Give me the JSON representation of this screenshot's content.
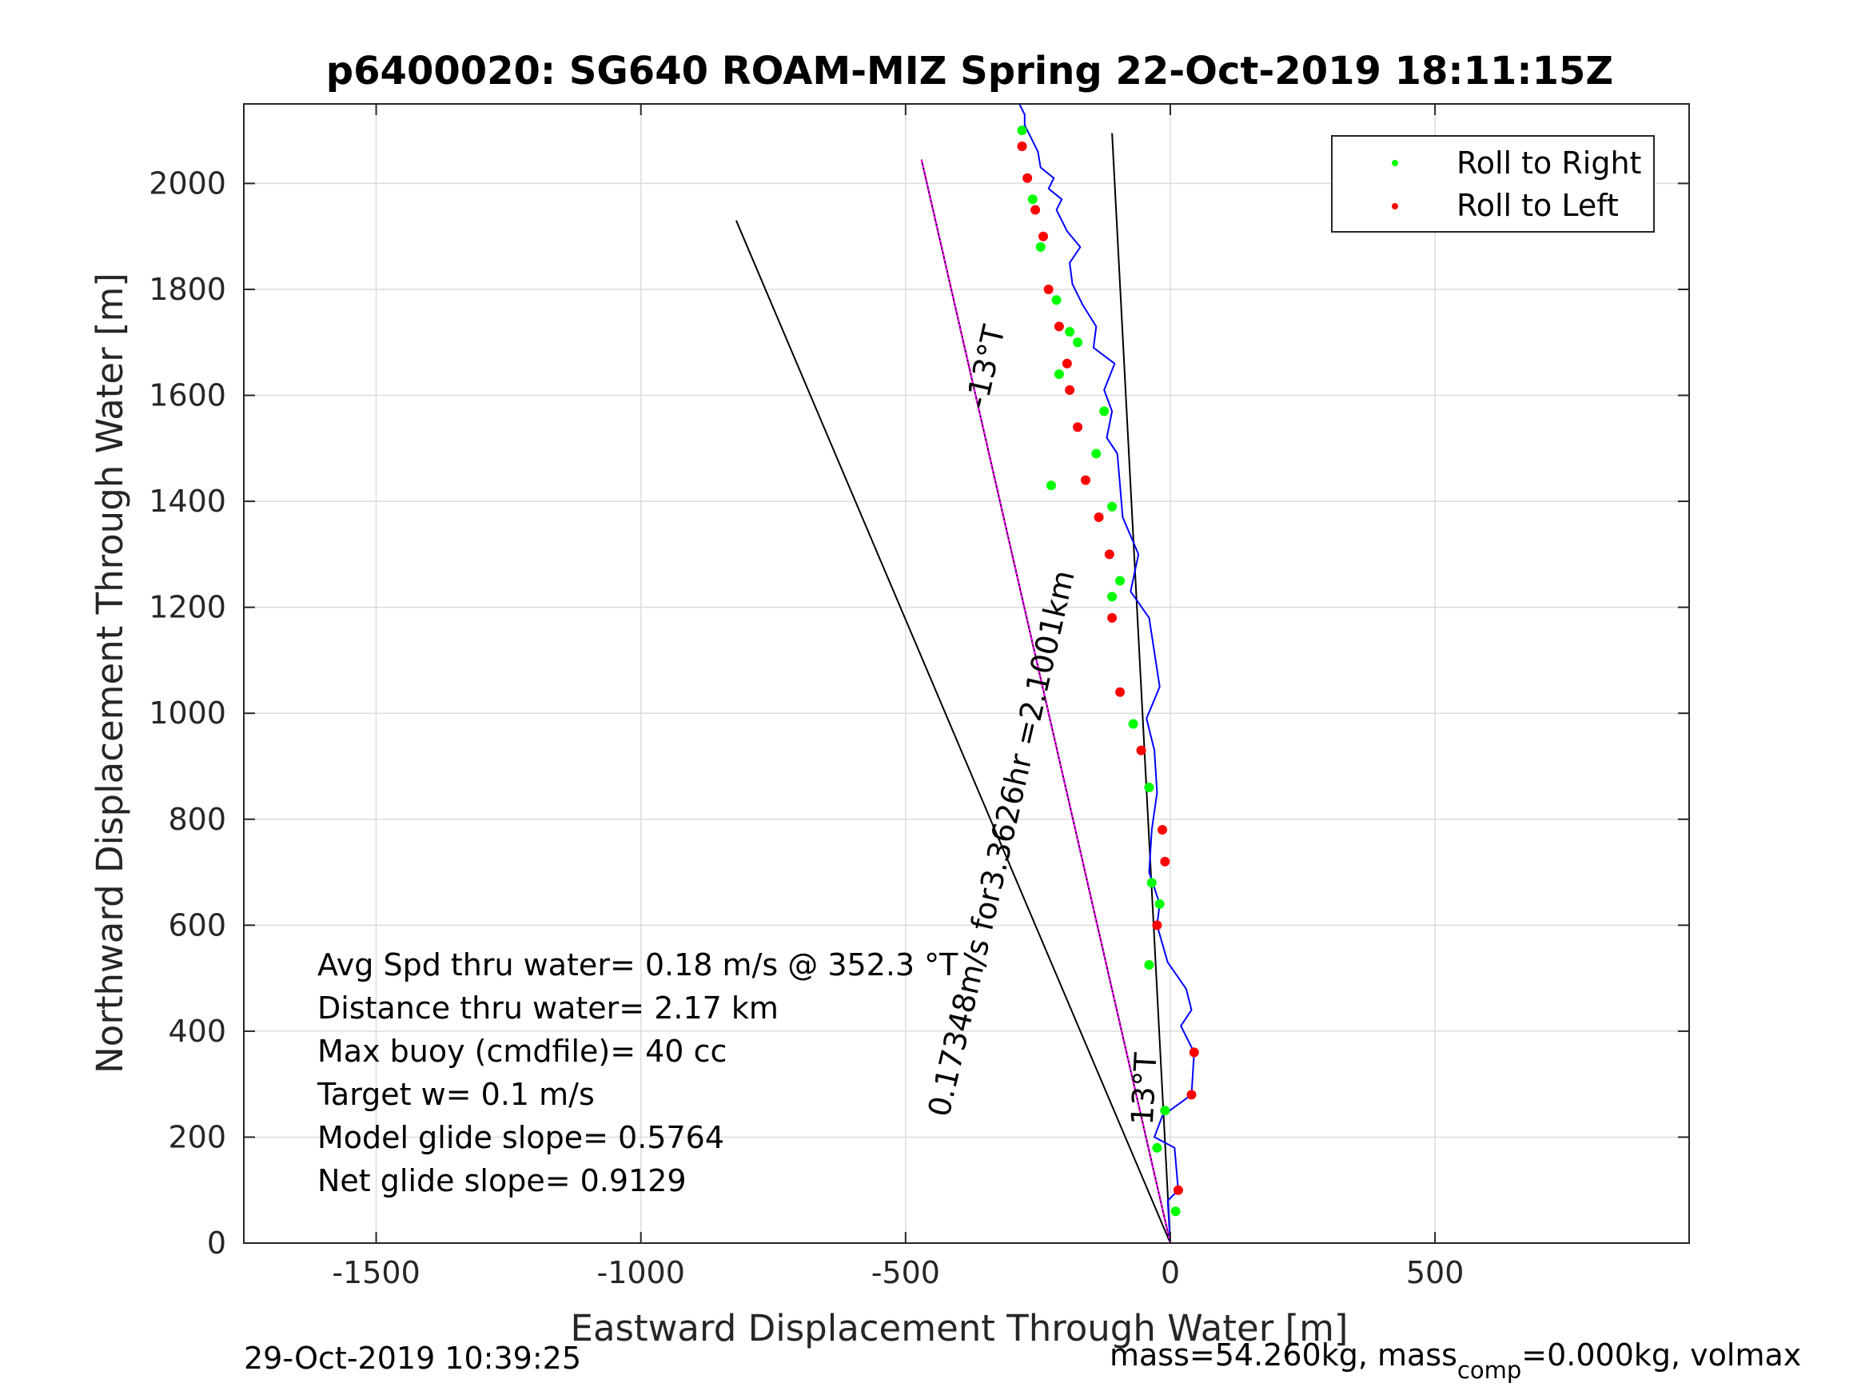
{
  "chart_data": {
    "type": "line",
    "title": "p6400020: SG640 ROAM-MIZ Spring 22-Oct-2019 18:11:15Z",
    "xlabel": "Eastward Displacement Through Water [m]",
    "ylabel": "Northward Displacement Through Water [m]",
    "xlim": [
      -1750,
      980
    ],
    "ylim": [
      0,
      2150
    ],
    "x_ticks": [
      -1500,
      -1000,
      -500,
      0,
      500
    ],
    "y_ticks": [
      0,
      200,
      400,
      600,
      800,
      1000,
      1200,
      1400,
      1600,
      1800,
      2000
    ],
    "grid": true,
    "legend_position": "top-right",
    "legend": [
      {
        "label": "Roll to Right",
        "color": "#00ff00"
      },
      {
        "label": "Roll to Left",
        "color": "#ff0000"
      }
    ],
    "series": [
      {
        "name": "track",
        "color": "#0000ff",
        "x": [
          0,
          -5,
          15,
          8,
          -30,
          -15,
          40,
          45,
          20,
          40,
          30,
          -5,
          -25,
          -20,
          -40,
          -35,
          -25,
          -30,
          -45,
          -20,
          -40,
          -75,
          -60,
          -90,
          -95,
          -100,
          -120,
          -110,
          -125,
          -105,
          -145,
          -140,
          -165,
          -185,
          -190,
          -170,
          -195,
          -215,
          -205,
          -230,
          -220,
          -245,
          -250,
          -265,
          -275,
          -275,
          -285
        ],
        "y": [
          0,
          80,
          100,
          180,
          200,
          240,
          280,
          360,
          410,
          440,
          480,
          530,
          600,
          640,
          700,
          780,
          850,
          930,
          990,
          1050,
          1180,
          1230,
          1300,
          1370,
          1430,
          1490,
          1520,
          1570,
          1610,
          1660,
          1690,
          1730,
          1770,
          1810,
          1850,
          1880,
          1910,
          1950,
          1970,
          1990,
          2010,
          2030,
          2060,
          2090,
          2110,
          2130,
          2150
        ]
      }
    ],
    "roll_right_points": {
      "color": "#00ff00",
      "x": [
        10,
        -25,
        -10,
        -40,
        -20,
        -40,
        -35,
        -70,
        -95,
        -110,
        -110,
        -140,
        -125,
        -175,
        -190,
        -215,
        -210,
        -225,
        -245,
        -260,
        -280
      ],
      "y": [
        60,
        180,
        250,
        525,
        640,
        860,
        680,
        980,
        1250,
        1220,
        1390,
        1490,
        1570,
        1700,
        1720,
        1780,
        1640,
        1430,
        1880,
        1970,
        2100
      ]
    },
    "roll_left_points": {
      "color": "#ff0000",
      "x": [
        15,
        40,
        45,
        -25,
        -10,
        -15,
        -55,
        -95,
        -110,
        -115,
        -135,
        -160,
        -175,
        -190,
        -195,
        -210,
        -230,
        -240,
        -255,
        -270,
        -280
      ],
      "y": [
        100,
        280,
        360,
        600,
        720,
        780,
        930,
        1040,
        1180,
        1300,
        1370,
        1440,
        1540,
        1610,
        1660,
        1730,
        1800,
        1900,
        1950,
        2010,
        2070
      ]
    },
    "reference_lines": [
      {
        "name": "heading-minus-13",
        "color": "#000000",
        "x": [
          0,
          -470
        ],
        "y": [
          0,
          2045
        ]
      },
      {
        "name": "heading-13",
        "color": "#000000",
        "x": [
          0,
          -110
        ],
        "y": [
          0,
          2095
        ]
      },
      {
        "name": "wide-bound",
        "color": "#000000",
        "x": [
          0,
          -820
        ],
        "y": [
          0,
          1930
        ]
      },
      {
        "name": "net-displacement",
        "color": "#ff00ff",
        "x": [
          0,
          -470
        ],
        "y": [
          0,
          2045
        ]
      }
    ],
    "annotations": [
      {
        "text": "-13°T",
        "x": -330,
        "y": 1650,
        "angle": -77
      },
      {
        "text": "0.17348m/s for3.3626hr =2.1001km",
        "x": -300,
        "y": 750,
        "angle": -77
      },
      {
        "text": "13°T",
        "x": -30,
        "y": 290,
        "angle": -87
      }
    ]
  },
  "info_lines": [
    "Avg Spd thru water=  0.18 m/s @ 352.3 °T",
    "Distance thru water=  2.17 km",
    "Max buoy (cmdfile)= 40 cc",
    "Target w= 0.1 m/s",
    "Model glide slope= 0.5764",
    "Net glide slope= 0.9129"
  ],
  "footer": {
    "timestamp": "29-Oct-2019 10:39:25",
    "mass_prefix": "mass=54.260kg, mass",
    "mass_sub": "comp",
    "mass_suffix": "=0.000kg, volmax"
  }
}
